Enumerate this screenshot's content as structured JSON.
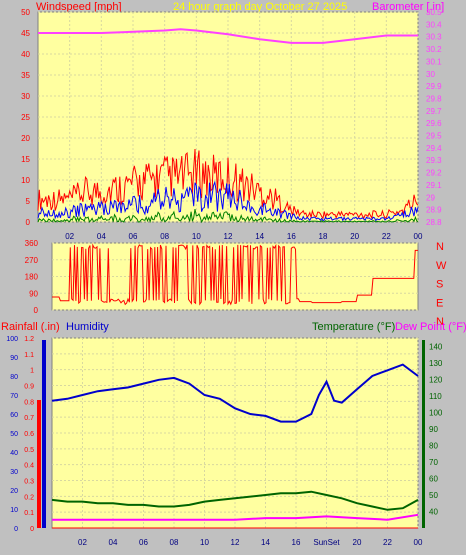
{
  "header": {
    "left_label": "Windspeed [mph]",
    "center_label": "24 hour graph day   October 27 2025",
    "right_label": "Barometer [.in]"
  },
  "colors": {
    "plot_bg": "#ffffa0",
    "frame_bg": "#c0c0c0",
    "wind": "#ff0000",
    "gust": "#0000ff",
    "wind_green": "#008000",
    "barometer": "#ff40ff",
    "humidity": "#0000cc",
    "temperature": "#006400",
    "dew_point": "#ff00ff",
    "rain": "#ff0000",
    "title_yellow": "#ffff00"
  },
  "chart_data": [
    {
      "type": "line",
      "name": "wind-and-barometer",
      "x_ticks": [
        "02",
        "04",
        "06",
        "08",
        "10",
        "12",
        "14",
        "16",
        "18",
        "20",
        "22",
        "00"
      ],
      "xlim": [
        0,
        24
      ],
      "ylabel_left": "Windspeed [mph]",
      "ylim_left": [
        0,
        50
      ],
      "yticks_left": [
        "0",
        "5",
        "10",
        "15",
        "20",
        "25",
        "30",
        "35",
        "40",
        "45",
        "50"
      ],
      "ylabel_right": "Barometer [.in]",
      "ylim_right": [
        28.8,
        30.5
      ],
      "yticks_right": [
        "28.8",
        "28.9",
        "29",
        "29.1",
        "29.2",
        "29.3",
        "29.4",
        "29.5",
        "29.6",
        "29.7",
        "29.8",
        "29.9",
        "30",
        "30.1",
        "30.2",
        "30.3",
        "30.4",
        "30.5"
      ],
      "series": [
        {
          "name": "Barometer [.in]",
          "axis": "right",
          "x": [
            0,
            2,
            4,
            6,
            8,
            9,
            10,
            12,
            14,
            16,
            18,
            20,
            22,
            24
          ],
          "values": [
            30.33,
            30.33,
            30.33,
            30.34,
            30.35,
            30.36,
            30.35,
            30.32,
            30.28,
            30.25,
            30.25,
            30.28,
            30.31,
            30.31
          ]
        },
        {
          "name": "Windspeed [mph]",
          "axis": "left",
          "x": [
            0,
            1,
            2,
            3,
            4,
            5,
            6,
            7,
            8,
            9,
            10,
            11,
            12,
            13,
            14,
            15,
            16,
            17,
            18,
            19,
            20,
            21,
            22,
            23,
            24
          ],
          "values": [
            3,
            3,
            3,
            4,
            4,
            5,
            6,
            6,
            7,
            8,
            8,
            8,
            8,
            6,
            4,
            3,
            2,
            1,
            1,
            1,
            1,
            1,
            1,
            2,
            4
          ]
        },
        {
          "name": "Gust",
          "axis": "left",
          "x": [
            0,
            1,
            2,
            3,
            4,
            5,
            6,
            7,
            8,
            9,
            10,
            11,
            12,
            13,
            14,
            15,
            16,
            17,
            18,
            19,
            20,
            21,
            22,
            23,
            24
          ],
          "values": [
            6,
            6,
            6,
            8,
            8,
            9,
            10,
            11,
            12,
            12,
            13,
            12,
            12,
            10,
            8,
            6,
            3,
            2,
            2,
            2,
            2,
            2,
            2,
            3,
            6
          ]
        }
      ]
    },
    {
      "type": "line",
      "name": "wind-direction",
      "x_ticks": [],
      "xlim": [
        0,
        24
      ],
      "ylim": [
        0,
        360
      ],
      "yticks": [
        "0",
        "90",
        "180",
        "270",
        "360"
      ],
      "right_labels": [
        "N",
        "W",
        "S",
        "E",
        "N"
      ],
      "series": [
        {
          "name": "Wind direction",
          "x": [
            0,
            0.5,
            1,
            1.5,
            2,
            3,
            4,
            5,
            6,
            7,
            8,
            9,
            10,
            11,
            12,
            13,
            14,
            15,
            16,
            16.2,
            17,
            18,
            19,
            20,
            21,
            22,
            23,
            23.8,
            24
          ],
          "values": [
            70,
            50,
            50,
            300,
            120,
            250,
            80,
            300,
            60,
            320,
            40,
            320,
            90,
            300,
            60,
            320,
            120,
            300,
            60,
            45,
            40,
            40,
            45,
            80,
            170,
            170,
            170,
            320,
            60
          ]
        }
      ]
    },
    {
      "type": "line",
      "name": "rain-humidity-temperature",
      "x_ticks": [
        "02",
        "04",
        "06",
        "08",
        "10",
        "12",
        "14",
        "16",
        "SunSet",
        "20",
        "22",
        "00"
      ],
      "xlim": [
        0,
        24
      ],
      "ylabel_left": "Rainfall (.in)",
      "ylabel_left2": "Humidity",
      "ylim_rain": [
        0,
        1.2
      ],
      "yticks_rain": [
        "0",
        "0.1",
        "0.2",
        "0.3",
        "0.4",
        "0.5",
        "0.6",
        "0.7",
        "0.8",
        "0.9",
        "1",
        "1.1",
        "1.2"
      ],
      "ylim_humidity": [
        0,
        100
      ],
      "yticks_humidity": [
        "0",
        "10",
        "20",
        "30",
        "40",
        "50",
        "60",
        "70",
        "80",
        "90",
        "100"
      ],
      "ylabel_right": "Temperature (°F)",
      "ylabel_right2": "Dew Point (°F)",
      "ylim_right": [
        30,
        145
      ],
      "yticks_right": [
        "40",
        "50",
        "60",
        "70",
        "80",
        "90",
        "100",
        "110",
        "120",
        "130",
        "140"
      ],
      "sun_marker": "SunSet",
      "series": [
        {
          "name": "Humidity",
          "axis": "humidity",
          "x": [
            0,
            1,
            2,
            3,
            4,
            5,
            6,
            7,
            8,
            9,
            10,
            11,
            12,
            13,
            14,
            15,
            16,
            17,
            17.5,
            18,
            18.5,
            19,
            20,
            21,
            22,
            23,
            24
          ],
          "values": [
            67,
            68,
            70,
            72,
            73,
            74,
            76,
            78,
            79,
            76,
            70,
            68,
            63,
            60,
            59,
            56,
            56,
            60,
            70,
            77,
            67,
            66,
            73,
            80,
            83,
            86,
            80
          ]
        },
        {
          "name": "Temperature (°F)",
          "axis": "right",
          "x": [
            0,
            1,
            2,
            3,
            4,
            5,
            6,
            7,
            8,
            9,
            10,
            11,
            12,
            13,
            14,
            15,
            16,
            17,
            18,
            19,
            20,
            21,
            22,
            23,
            24
          ],
          "values": [
            47,
            46,
            46,
            45,
            45,
            44,
            44,
            43,
            43,
            44,
            46,
            47,
            48,
            49,
            50,
            51,
            51,
            52,
            50,
            48,
            45,
            43,
            41,
            42,
            47
          ]
        },
        {
          "name": "Dew Point (°F)",
          "axis": "right",
          "x": [
            0,
            2,
            4,
            6,
            8,
            10,
            12,
            14,
            16,
            18,
            20,
            22,
            24
          ],
          "values": [
            35,
            35,
            35,
            35,
            35,
            35,
            35,
            36,
            36,
            37,
            36,
            35,
            38
          ]
        },
        {
          "name": "Rainfall (.in)",
          "axis": "rain",
          "x": [
            0,
            4,
            8,
            12,
            16,
            20,
            24
          ],
          "values": [
            0,
            0,
            0,
            0,
            0,
            0,
            0
          ]
        }
      ]
    }
  ]
}
